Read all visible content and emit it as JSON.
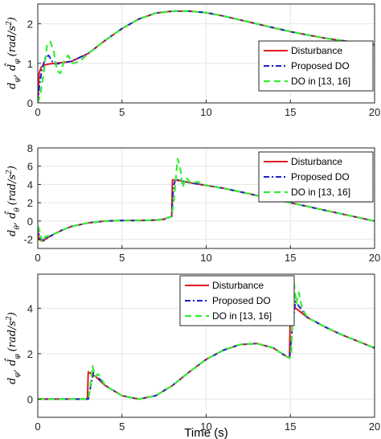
{
  "colors": {
    "disturbance": "#e31a1c",
    "proposed": "#1f1fcc",
    "do_ref": "#33ee33",
    "grid": "#e6e6e6",
    "axis": "#262626"
  },
  "chart_data": [
    {
      "type": "line",
      "ylabel": "dφ, d̂φ (rad/s²)",
      "xlabel": "",
      "xlim": [
        0,
        20
      ],
      "ylim": [
        0,
        2.5
      ],
      "xticks": [
        "0",
        "5",
        "10",
        "15",
        "20"
      ],
      "yticks": [
        "0",
        "1",
        "2"
      ],
      "grid": true,
      "legend_position": "right",
      "legend": [
        "Disturbance",
        "Proposed DO",
        "DO in [13, 16]"
      ],
      "series": [
        {
          "name": "Disturbance",
          "x": [
            0,
            0.08,
            0.2,
            0.4,
            0.6,
            0.8,
            1,
            1.5,
            2,
            3,
            4,
            5,
            6,
            7,
            8,
            9,
            10,
            11,
            12,
            13,
            14,
            15,
            16,
            17,
            18,
            19,
            20
          ],
          "values": [
            0,
            0.75,
            0.9,
            0.96,
            0.98,
            0.99,
            1.0,
            1.02,
            1.05,
            1.25,
            1.58,
            1.88,
            2.12,
            2.27,
            2.32,
            2.32,
            2.28,
            2.2,
            2.1,
            2.0,
            1.9,
            1.8,
            1.72,
            1.64,
            1.58,
            1.52,
            1.47
          ]
        },
        {
          "name": "Proposed DO",
          "x": [
            0,
            0.1,
            0.25,
            0.45,
            0.65,
            0.85,
            1.05,
            1.3,
            1.6,
            2,
            3,
            4,
            5,
            6,
            7,
            8,
            9,
            10,
            11,
            12,
            13,
            14,
            15,
            16,
            17,
            18,
            19,
            20
          ],
          "values": [
            0,
            0.45,
            0.85,
            1.15,
            1.2,
            1.05,
            0.98,
            1.0,
            1.02,
            1.05,
            1.25,
            1.58,
            1.88,
            2.12,
            2.27,
            2.32,
            2.32,
            2.28,
            2.2,
            2.1,
            2.0,
            1.9,
            1.8,
            1.72,
            1.64,
            1.58,
            1.52,
            1.47
          ]
        },
        {
          "name": "DO in [13, 16]",
          "x": [
            0,
            0.15,
            0.35,
            0.55,
            0.75,
            0.95,
            1.15,
            1.35,
            1.55,
            1.8,
            2.1,
            2.5,
            3,
            4,
            5,
            6,
            7,
            8,
            9,
            10,
            11,
            12,
            13,
            14,
            15,
            16,
            17,
            18,
            19,
            20
          ],
          "values": [
            0,
            0.2,
            0.75,
            1.45,
            1.55,
            1.3,
            0.8,
            0.75,
            1.05,
            1.2,
            1.0,
            1.05,
            1.25,
            1.58,
            1.88,
            2.12,
            2.27,
            2.32,
            2.32,
            2.28,
            2.2,
            2.1,
            2.0,
            1.9,
            1.8,
            1.72,
            1.64,
            1.58,
            1.52,
            1.47
          ]
        }
      ]
    },
    {
      "type": "line",
      "ylabel": "dθ, d̂θ (rad/s²)",
      "xlabel": "",
      "xlim": [
        0,
        20
      ],
      "ylim": [
        -3,
        8
      ],
      "xticks": [
        "0",
        "5",
        "10",
        "15",
        "20"
      ],
      "yticks": [
        "-2",
        "0",
        "2",
        "4",
        "6",
        "8"
      ],
      "grid": true,
      "legend_position": "top-right",
      "legend": [
        "Disturbance",
        "Proposed DO",
        "DO in [13, 16]"
      ],
      "series": [
        {
          "name": "Disturbance",
          "x": [
            0,
            0.05,
            0.3,
            0.6,
            1,
            1.5,
            2,
            3,
            4,
            5,
            6,
            7,
            7.5,
            7.95,
            8,
            8.5,
            9,
            10,
            11,
            12,
            13,
            14,
            15,
            16,
            17,
            18,
            19,
            20
          ],
          "values": [
            -0.5,
            -2.0,
            -2.2,
            -1.8,
            -1.4,
            -0.95,
            -0.6,
            -0.2,
            0.0,
            0.05,
            0.05,
            0.1,
            0.2,
            0.5,
            4.5,
            4.4,
            4.2,
            3.9,
            3.6,
            3.2,
            2.8,
            2.4,
            2.0,
            1.6,
            1.2,
            0.8,
            0.4,
            0.0
          ]
        },
        {
          "name": "Proposed DO",
          "x": [
            0,
            0.1,
            0.3,
            0.6,
            1,
            1.5,
            2,
            3,
            4,
            5,
            6,
            7,
            7.5,
            7.95,
            8.05,
            8.2,
            8.5,
            9,
            10,
            11,
            12,
            13,
            14,
            15,
            16,
            17,
            18,
            19,
            20
          ],
          "values": [
            -0.5,
            -1.8,
            -2.1,
            -1.8,
            -1.4,
            -0.95,
            -0.6,
            -0.2,
            0.0,
            0.05,
            0.05,
            0.1,
            0.2,
            0.5,
            3.8,
            4.6,
            4.4,
            4.2,
            3.9,
            3.6,
            3.2,
            2.8,
            2.4,
            2.0,
            1.6,
            1.2,
            0.8,
            0.4,
            0.0
          ]
        },
        {
          "name": "DO in [13, 16]",
          "x": [
            0,
            0.1,
            0.25,
            0.45,
            0.7,
            1,
            1.5,
            2,
            3,
            4,
            5,
            6,
            7,
            7.5,
            7.95,
            8.1,
            8.3,
            8.45,
            8.6,
            8.8,
            9.1,
            9.5,
            10,
            11,
            12,
            13,
            14,
            15,
            16,
            17,
            18,
            19,
            20
          ],
          "values": [
            -0.5,
            -1.0,
            -2.3,
            -1.7,
            -1.6,
            -1.4,
            -0.95,
            -0.6,
            -0.2,
            0.0,
            0.05,
            0.05,
            0.1,
            0.2,
            0.5,
            2.5,
            6.8,
            6.0,
            3.7,
            4.8,
            4.1,
            4.3,
            3.9,
            3.6,
            3.2,
            2.8,
            2.4,
            2.0,
            1.6,
            1.2,
            0.8,
            0.4,
            0.0
          ]
        }
      ]
    },
    {
      "type": "line",
      "ylabel": "dφ, d̂φ (rad/s²)",
      "xlabel": "Time (s)",
      "xlim": [
        0,
        20
      ],
      "ylim": [
        -0.8,
        5.5
      ],
      "xticks": [
        "0",
        "5",
        "10",
        "15",
        "20"
      ],
      "yticks": [
        "0",
        "2",
        "4"
      ],
      "grid": true,
      "legend_position": "top",
      "legend": [
        "Disturbance",
        "Proposed DO",
        "DO in [13, 16]"
      ],
      "series": [
        {
          "name": "Disturbance",
          "x": [
            0,
            2.95,
            3.0,
            3.5,
            4,
            5,
            6,
            7,
            8,
            9,
            10,
            11,
            12,
            13,
            14,
            14.5,
            14.95,
            15.0,
            15.5,
            16,
            17,
            18,
            19,
            20
          ],
          "values": [
            0,
            0,
            1.2,
            0.95,
            0.6,
            0.15,
            0.0,
            0.15,
            0.6,
            1.2,
            1.75,
            2.15,
            2.4,
            2.45,
            2.25,
            2.0,
            1.8,
            4.15,
            3.9,
            3.6,
            3.2,
            2.85,
            2.55,
            2.25
          ]
        },
        {
          "name": "Proposed DO",
          "x": [
            0,
            3.0,
            3.15,
            3.3,
            3.6,
            4,
            5,
            6,
            7,
            8,
            9,
            10,
            11,
            12,
            13,
            14,
            14.5,
            14.95,
            15.1,
            15.3,
            15.6,
            16,
            17,
            18,
            19,
            20
          ],
          "values": [
            0,
            0,
            0.6,
            1.15,
            0.95,
            0.6,
            0.15,
            0.0,
            0.15,
            0.6,
            1.2,
            1.75,
            2.15,
            2.4,
            2.45,
            2.25,
            2.0,
            1.8,
            3.0,
            4.3,
            4.0,
            3.6,
            3.2,
            2.85,
            2.55,
            2.25
          ]
        },
        {
          "name": "DO in [13, 16]",
          "x": [
            0,
            3.0,
            3.1,
            3.25,
            3.4,
            3.6,
            4,
            5,
            6,
            7,
            8,
            9,
            10,
            11,
            12,
            13,
            14,
            14.5,
            14.95,
            15.05,
            15.2,
            15.35,
            15.5,
            15.7,
            16,
            17,
            18,
            19,
            20
          ],
          "values": [
            0,
            0,
            0.4,
            1.45,
            1.0,
            1.1,
            0.6,
            0.15,
            0.0,
            0.15,
            0.6,
            1.2,
            1.75,
            2.15,
            2.4,
            2.45,
            2.25,
            2.0,
            1.8,
            2.0,
            5.2,
            4.2,
            4.7,
            4.0,
            3.6,
            3.2,
            2.85,
            2.55,
            2.25
          ]
        }
      ]
    }
  ]
}
